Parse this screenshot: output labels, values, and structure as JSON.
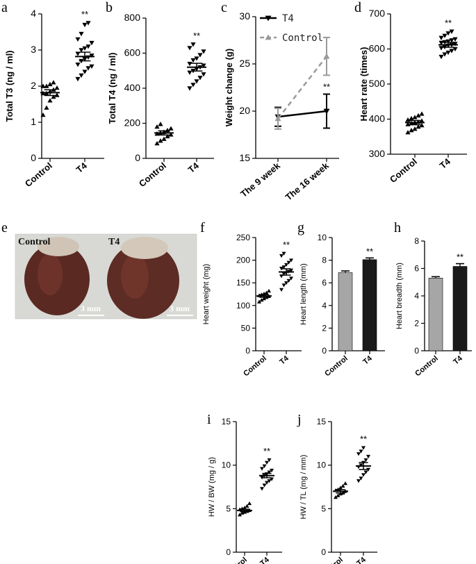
{
  "panel_letters": {
    "a": "a",
    "b": "b",
    "c": "c",
    "d": "d",
    "e": "e",
    "f": "f",
    "g": "g",
    "h": "h",
    "i": "i",
    "j": "j"
  },
  "photo": {
    "control_label": "Control",
    "t4_label": "T4",
    "scale_left": "3 mm",
    "scale_right": "3 mm"
  },
  "colors": {
    "t4_line": "#000000",
    "control_line": "#9a9a9a",
    "control_bar": "#a6a6a6",
    "t4_bar": "#1a1a1a",
    "photo_background": "#d8d9d4",
    "heart_color": "#5a2a22"
  },
  "chart_data": [
    {
      "id": "a",
      "type": "scatter",
      "categories": [
        "Control",
        "T4"
      ],
      "ylabel": "Total T3 (ng / ml)",
      "ylim": [
        0,
        4
      ],
      "yticks": [
        "0",
        "1",
        "2",
        "3",
        "4"
      ],
      "significance": "**",
      "groups": [
        {
          "name": "Control",
          "marker": "triangle-up",
          "mean": 1.82,
          "sem": 0.08,
          "points": [
            1.2,
            1.4,
            1.6,
            1.7,
            1.75,
            1.8,
            1.8,
            1.85,
            1.9,
            1.95,
            2.0,
            2.0,
            2.05,
            2.1
          ]
        },
        {
          "name": "T4",
          "marker": "triangle-down",
          "mean": 2.82,
          "sem": 0.12,
          "points": [
            2.2,
            2.3,
            2.4,
            2.5,
            2.55,
            2.6,
            2.7,
            2.75,
            2.8,
            2.85,
            2.9,
            3.0,
            3.05,
            3.1,
            3.2,
            3.3,
            3.45,
            3.7,
            3.75
          ]
        }
      ]
    },
    {
      "id": "b",
      "type": "scatter",
      "categories": [
        "Control",
        "T4"
      ],
      "ylabel": "Total T4 (ng / ml)",
      "ylim": [
        0,
        800
      ],
      "yticks": [
        "0",
        "200",
        "400",
        "600",
        "800"
      ],
      "significance": "**",
      "groups": [
        {
          "name": "Control",
          "marker": "triangle-up",
          "mean": 145,
          "sem": 12,
          "points": [
            85,
            100,
            110,
            125,
            135,
            140,
            145,
            150,
            160,
            170,
            180,
            195
          ]
        },
        {
          "name": "T4",
          "marker": "triangle-down",
          "mean": 520,
          "sem": 22,
          "points": [
            400,
            420,
            440,
            460,
            480,
            490,
            500,
            510,
            520,
            530,
            540,
            560,
            570,
            590,
            610,
            630,
            650
          ]
        }
      ]
    },
    {
      "id": "c",
      "type": "line",
      "categories": [
        "The 9 week",
        "The 16 week"
      ],
      "ylabel": "Weight change (g)",
      "ylim": [
        15,
        30
      ],
      "yticks": [
        "15",
        "20",
        "25",
        "30"
      ],
      "significance": "**",
      "legend_position": "top-left",
      "series": [
        {
          "name": "T4",
          "style": "solid",
          "values": [
            19.4,
            20.0
          ],
          "errors": [
            1.0,
            1.8
          ]
        },
        {
          "name": "Control",
          "style": "dashed",
          "values": [
            19.2,
            25.8
          ],
          "errors": [
            1.1,
            2.0
          ]
        }
      ]
    },
    {
      "id": "d",
      "type": "scatter",
      "categories": [
        "Control",
        "T4"
      ],
      "ylabel": "Heart rate (times)",
      "ylim": [
        300,
        700
      ],
      "yticks": [
        "300",
        "400",
        "500",
        "600",
        "700"
      ],
      "significance": "**",
      "groups": [
        {
          "name": "Control",
          "marker": "triangle-up",
          "mean": 390,
          "sem": 6,
          "points": [
            362,
            368,
            372,
            378,
            382,
            385,
            388,
            390,
            392,
            395,
            398,
            402,
            405,
            410,
            415
          ]
        },
        {
          "name": "T4",
          "marker": "triangle-down",
          "mean": 612,
          "sem": 7,
          "points": [
            578,
            585,
            590,
            595,
            600,
            603,
            606,
            610,
            612,
            615,
            618,
            620,
            622,
            625,
            628,
            632,
            638,
            645,
            650
          ]
        }
      ]
    },
    {
      "id": "f",
      "type": "scatter",
      "categories": [
        "Control",
        "T4"
      ],
      "ylabel": "Heart weight (mg)",
      "ylim": [
        0,
        250
      ],
      "yticks": [
        "0",
        "50",
        "100",
        "150",
        "200",
        "250"
      ],
      "significance": "**",
      "groups": [
        {
          "name": "Control",
          "marker": "triangle-up",
          "mean": 121,
          "sem": 3,
          "points": [
            108,
            112,
            115,
            118,
            120,
            122,
            124,
            126,
            128,
            132
          ]
        },
        {
          "name": "T4",
          "marker": "triangle-down",
          "mean": 174,
          "sem": 7,
          "points": [
            135,
            145,
            150,
            155,
            160,
            165,
            170,
            172,
            175,
            178,
            182,
            185,
            190,
            195,
            200,
            210,
            215
          ]
        }
      ]
    },
    {
      "id": "g",
      "type": "bar",
      "categories": [
        "Control",
        "T4"
      ],
      "ylabel": "Heart length (mm)",
      "ylim": [
        0,
        10
      ],
      "yticks": [
        "0",
        "2",
        "4",
        "6",
        "8",
        "10"
      ],
      "significance": "**",
      "values": [
        6.9,
        8.05
      ],
      "errors": [
        0.15,
        0.15
      ]
    },
    {
      "id": "h",
      "type": "bar",
      "categories": [
        "Control",
        "T4"
      ],
      "ylabel": "Heart breadth (mm)",
      "ylim": [
        0,
        8
      ],
      "yticks": [
        "0",
        "2",
        "4",
        "6",
        "8"
      ],
      "significance": "**",
      "values": [
        5.3,
        6.15
      ],
      "errors": [
        0.1,
        0.2
      ]
    },
    {
      "id": "i",
      "type": "scatter",
      "categories": [
        "Control",
        "T4"
      ],
      "ylabel": "HW / BW (mg / g)",
      "ylim": [
        0,
        15
      ],
      "yticks": [
        "0",
        "5",
        "10",
        "15"
      ],
      "significance": "**",
      "groups": [
        {
          "name": "Control",
          "marker": "triangle-up",
          "mean": 4.8,
          "sem": 0.15,
          "points": [
            4.3,
            4.5,
            4.6,
            4.7,
            4.8,
            4.9,
            5.0,
            5.1,
            5.3,
            5.6
          ]
        },
        {
          "name": "T4",
          "marker": "triangle-down",
          "mean": 8.8,
          "sem": 0.25,
          "points": [
            7.3,
            7.7,
            8.0,
            8.2,
            8.4,
            8.6,
            8.8,
            9.0,
            9.2,
            9.4,
            9.6,
            9.9,
            10.3,
            10.6
          ]
        }
      ]
    },
    {
      "id": "j",
      "type": "scatter",
      "categories": [
        "Control",
        "T4"
      ],
      "ylabel": "HW / TL (mg / mm)",
      "ylim": [
        0,
        15
      ],
      "yticks": [
        "0",
        "5",
        "10",
        "15"
      ],
      "significance": "**",
      "groups": [
        {
          "name": "Control",
          "marker": "triangle-up",
          "mean": 7.0,
          "sem": 0.2,
          "points": [
            6.3,
            6.5,
            6.7,
            6.8,
            7.0,
            7.1,
            7.2,
            7.4,
            7.6,
            7.9
          ]
        },
        {
          "name": "T4",
          "marker": "triangle-down",
          "mean": 9.9,
          "sem": 0.4,
          "points": [
            8.2,
            8.5,
            8.9,
            9.2,
            9.5,
            9.8,
            10.0,
            10.3,
            10.6,
            11.0,
            11.3,
            11.6,
            12.0
          ]
        }
      ]
    }
  ]
}
